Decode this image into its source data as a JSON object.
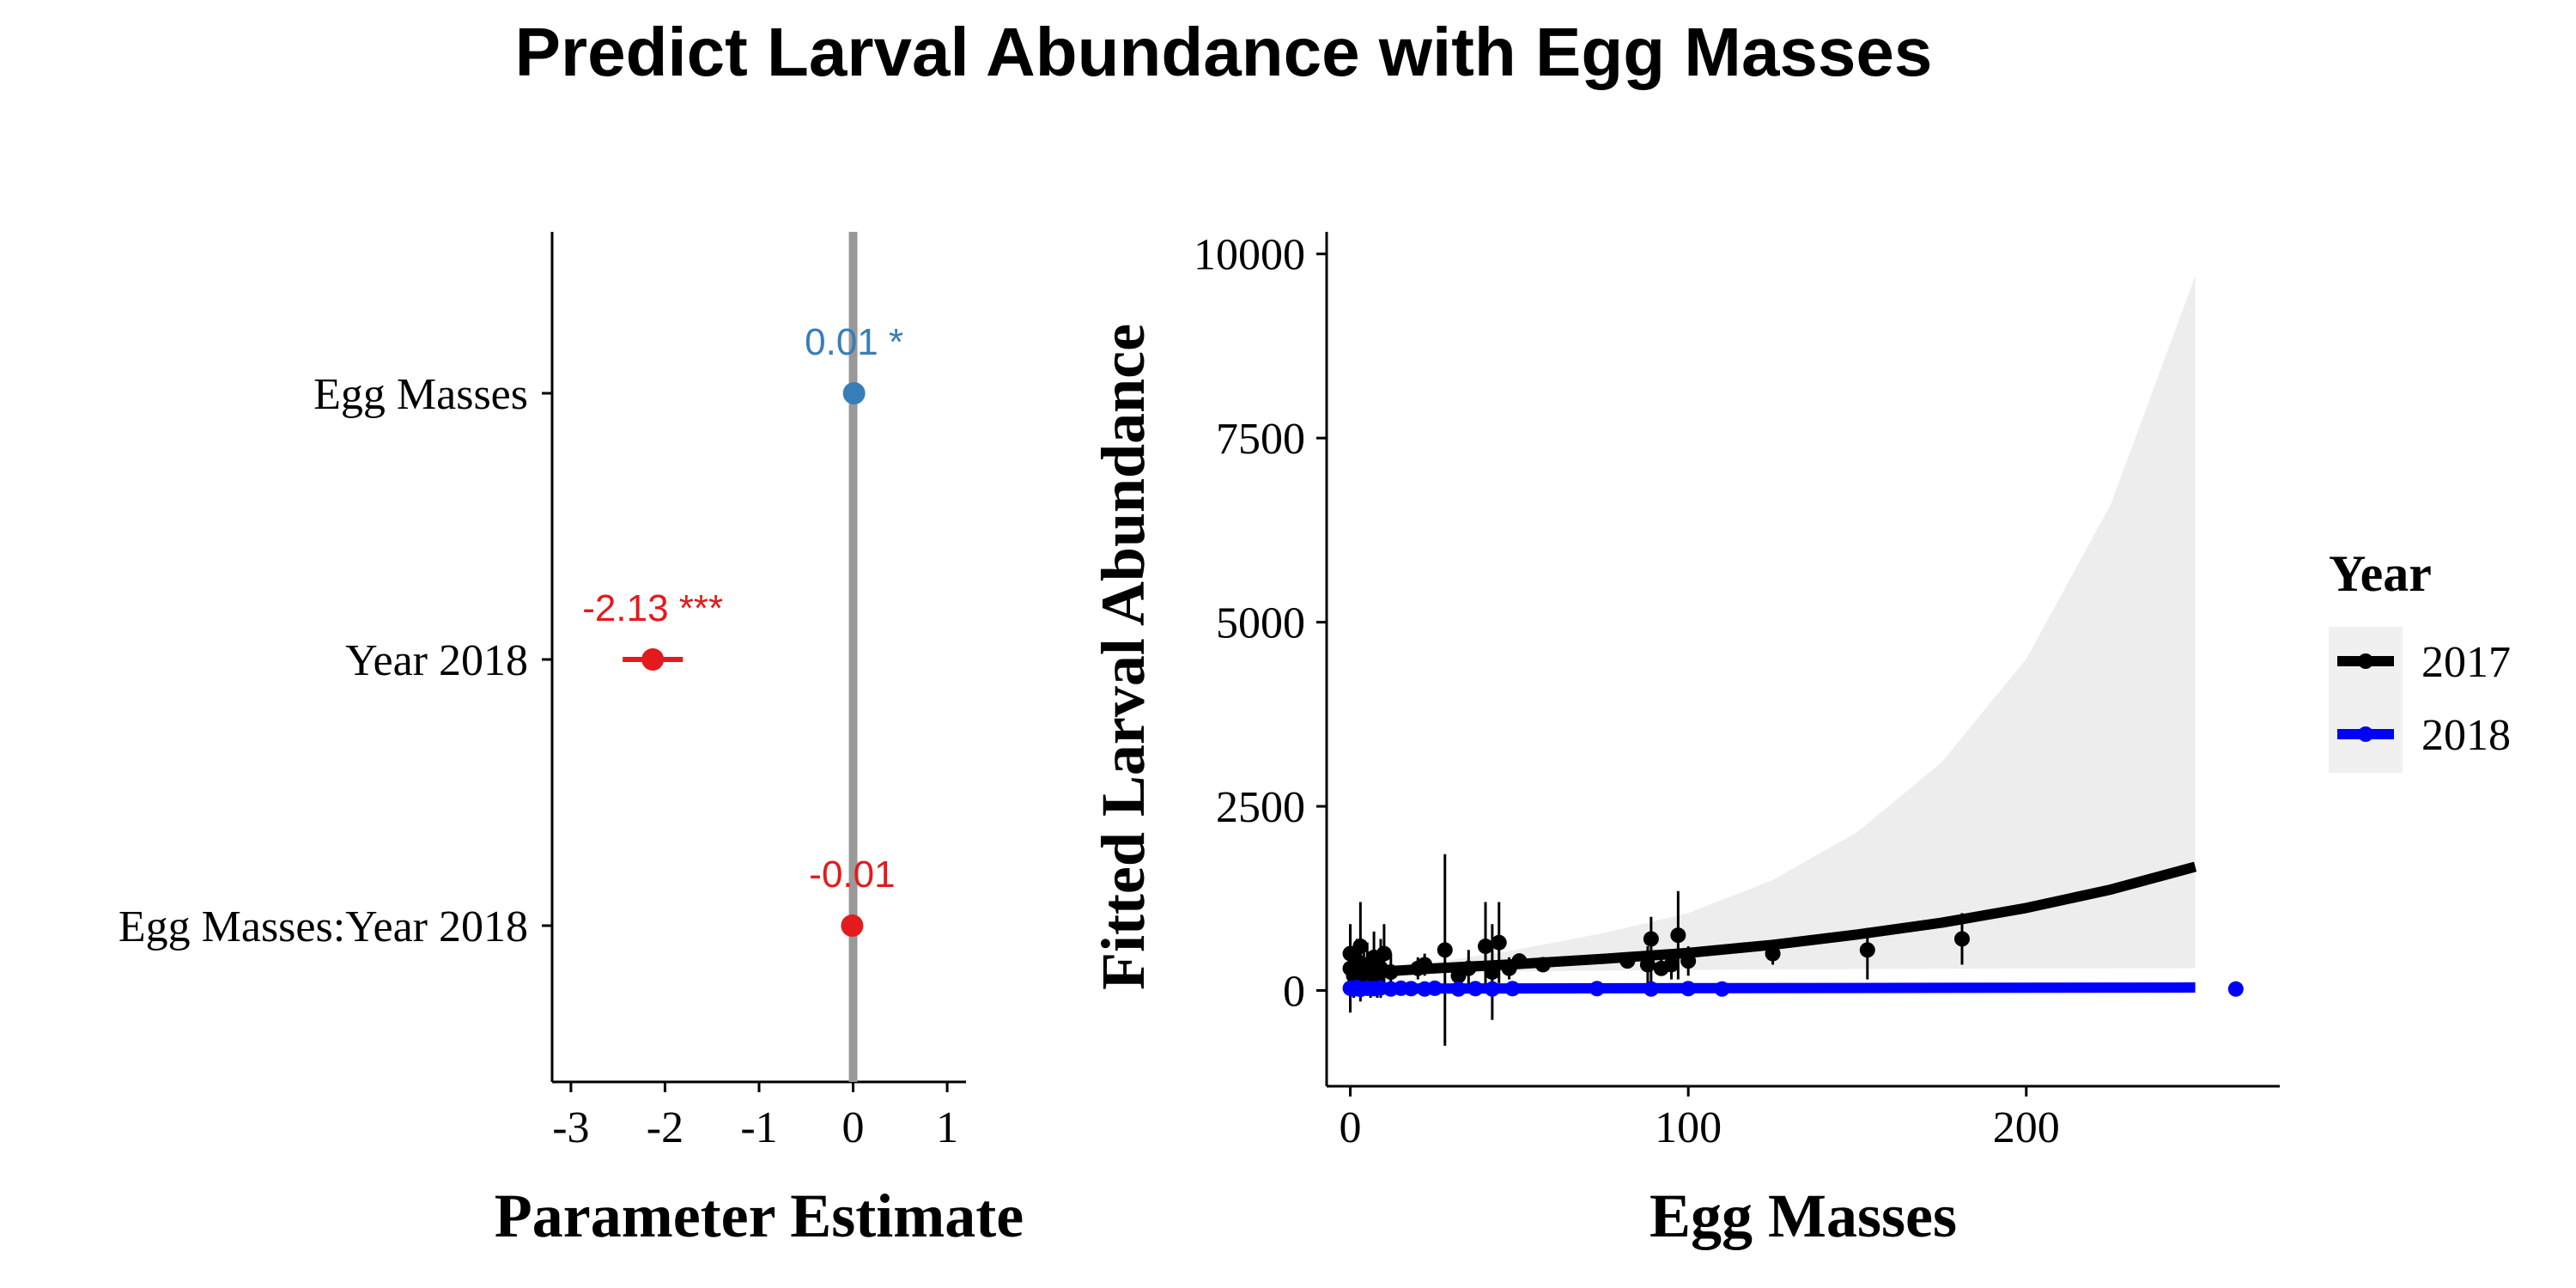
{
  "title": "Predict Larval Abundance with Egg Masses",
  "chart_data": [
    {
      "type": "scatter",
      "subtype": "coefficient-plot",
      "title": "",
      "xlabel": "Parameter Estimate",
      "ylabel": "",
      "xlim": [
        -3.2,
        1.2
      ],
      "xticks": [
        -3,
        -2,
        -1,
        0,
        1
      ],
      "xtick_labels": [
        "-3",
        "-2",
        "-1",
        "0",
        "1"
      ],
      "reference_line_x": 0,
      "reference_line_color": "#999999",
      "points": [
        {
          "term": "Egg Masses",
          "estimate": 0.01,
          "ci_low": 0.0,
          "ci_high": 0.02,
          "label": "0.01 *",
          "color": "#377eb8"
        },
        {
          "term": "Year 2018",
          "estimate": -2.13,
          "ci_low": -2.45,
          "ci_high": -1.81,
          "label": "-2.13 ***",
          "color": "#e41a1c"
        },
        {
          "term": "Egg Masses:Year 2018",
          "estimate": -0.01,
          "ci_low": -0.02,
          "ci_high": 0.0,
          "label": "-0.01",
          "color": "#e41a1c"
        }
      ],
      "grid": false
    },
    {
      "type": "line",
      "title": "",
      "xlabel": "Egg Masses",
      "ylabel": "Fitted Larval Abundance",
      "xlim": [
        -7,
        275
      ],
      "ylim": [
        -1300,
        10300
      ],
      "xticks": [
        0,
        100,
        200
      ],
      "xtick_labels": [
        "0",
        "100",
        "200"
      ],
      "yticks": [
        0,
        2500,
        5000,
        7500,
        10000
      ],
      "ytick_labels": [
        "0",
        "2500",
        "5000",
        "7500",
        "10000"
      ],
      "grid": false,
      "legend": {
        "title": "Year",
        "position": "right"
      },
      "series": [
        {
          "name": "2017",
          "color": "#000000",
          "fit_x": [
            0,
            25,
            50,
            75,
            100,
            125,
            150,
            175,
            200,
            225,
            250
          ],
          "fit_y": [
            230,
            300,
            360,
            430,
            510,
            620,
            760,
            920,
            1120,
            1370,
            1680
          ],
          "ribbon_low": [
            200,
            240,
            260,
            270,
            280,
            285,
            290,
            295,
            298,
            300,
            302
          ],
          "ribbon_high": [
            260,
            380,
            560,
            780,
            1050,
            1500,
            2150,
            3100,
            4500,
            6600,
            9700
          ],
          "points": [
            {
              "x": 0,
              "y": 300,
              "lo": -300,
              "hi": 900
            },
            {
              "x": 0,
              "y": 500,
              "lo": 150,
              "hi": 850
            },
            {
              "x": 1,
              "y": 200,
              "lo": -100,
              "hi": 500
            },
            {
              "x": 2,
              "y": 400,
              "lo": 100,
              "hi": 700
            },
            {
              "x": 3,
              "y": 150,
              "lo": -150,
              "hi": 450
            },
            {
              "x": 3,
              "y": 600,
              "lo": 50,
              "hi": 1200
            },
            {
              "x": 4,
              "y": 250,
              "lo": -50,
              "hi": 550
            },
            {
              "x": 5,
              "y": 350,
              "lo": 50,
              "hi": 650
            },
            {
              "x": 6,
              "y": 100,
              "lo": -100,
              "hi": 300
            },
            {
              "x": 7,
              "y": 450,
              "lo": 100,
              "hi": 800
            },
            {
              "x": 8,
              "y": 200,
              "lo": -100,
              "hi": 500
            },
            {
              "x": 9,
              "y": 300,
              "lo": -100,
              "hi": 700
            },
            {
              "x": 10,
              "y": 500,
              "lo": 100,
              "hi": 900
            },
            {
              "x": 12,
              "y": 250,
              "lo": 0,
              "hi": 500
            },
            {
              "x": 20,
              "y": 300,
              "lo": 150,
              "hi": 450
            },
            {
              "x": 22,
              "y": 350,
              "lo": 200,
              "hi": 500
            },
            {
              "x": 28,
              "y": 550,
              "lo": -750,
              "hi": 1850
            },
            {
              "x": 32,
              "y": 200,
              "lo": 100,
              "hi": 300
            },
            {
              "x": 35,
              "y": 300,
              "lo": 50,
              "hi": 550
            },
            {
              "x": 40,
              "y": 600,
              "lo": 0,
              "hi": 1200
            },
            {
              "x": 42,
              "y": 250,
              "lo": -400,
              "hi": 900
            },
            {
              "x": 44,
              "y": 650,
              "lo": 100,
              "hi": 1200
            },
            {
              "x": 47,
              "y": 300,
              "lo": 150,
              "hi": 450
            },
            {
              "x": 50,
              "y": 400,
              "lo": 300,
              "hi": 500
            },
            {
              "x": 57,
              "y": 350,
              "lo": 250,
              "hi": 450
            },
            {
              "x": 82,
              "y": 400,
              "lo": 300,
              "hi": 500
            },
            {
              "x": 88,
              "y": 350,
              "lo": 100,
              "hi": 600
            },
            {
              "x": 89,
              "y": 700,
              "lo": 100,
              "hi": 1000
            },
            {
              "x": 92,
              "y": 300,
              "lo": 200,
              "hi": 450
            },
            {
              "x": 95,
              "y": 350,
              "lo": 150,
              "hi": 550
            },
            {
              "x": 97,
              "y": 750,
              "lo": 150,
              "hi": 1350
            },
            {
              "x": 100,
              "y": 400,
              "lo": 200,
              "hi": 600
            },
            {
              "x": 125,
              "y": 500,
              "lo": 350,
              "hi": 650
            },
            {
              "x": 153,
              "y": 550,
              "lo": 150,
              "hi": 850
            },
            {
              "x": 181,
              "y": 700,
              "lo": 350,
              "hi": 1050
            }
          ]
        },
        {
          "name": "2018",
          "color": "#0000ff",
          "fit_x": [
            0,
            250
          ],
          "fit_y": [
            25,
            40
          ],
          "points": [
            {
              "x": 0,
              "y": 30
            },
            {
              "x": 1,
              "y": 20
            },
            {
              "x": 2,
              "y": 40
            },
            {
              "x": 3,
              "y": 15
            },
            {
              "x": 5,
              "y": 30
            },
            {
              "x": 7,
              "y": 25
            },
            {
              "x": 9,
              "y": 35
            },
            {
              "x": 12,
              "y": 20
            },
            {
              "x": 15,
              "y": 30
            },
            {
              "x": 18,
              "y": 25
            },
            {
              "x": 22,
              "y": 20
            },
            {
              "x": 25,
              "y": 30
            },
            {
              "x": 32,
              "y": 20
            },
            {
              "x": 37,
              "y": 25
            },
            {
              "x": 42,
              "y": 20
            },
            {
              "x": 48,
              "y": 25
            },
            {
              "x": 73,
              "y": 25
            },
            {
              "x": 89,
              "y": 20
            },
            {
              "x": 100,
              "y": 25
            },
            {
              "x": 110,
              "y": 20
            },
            {
              "x": 262,
              "y": 20
            }
          ]
        }
      ]
    }
  ]
}
